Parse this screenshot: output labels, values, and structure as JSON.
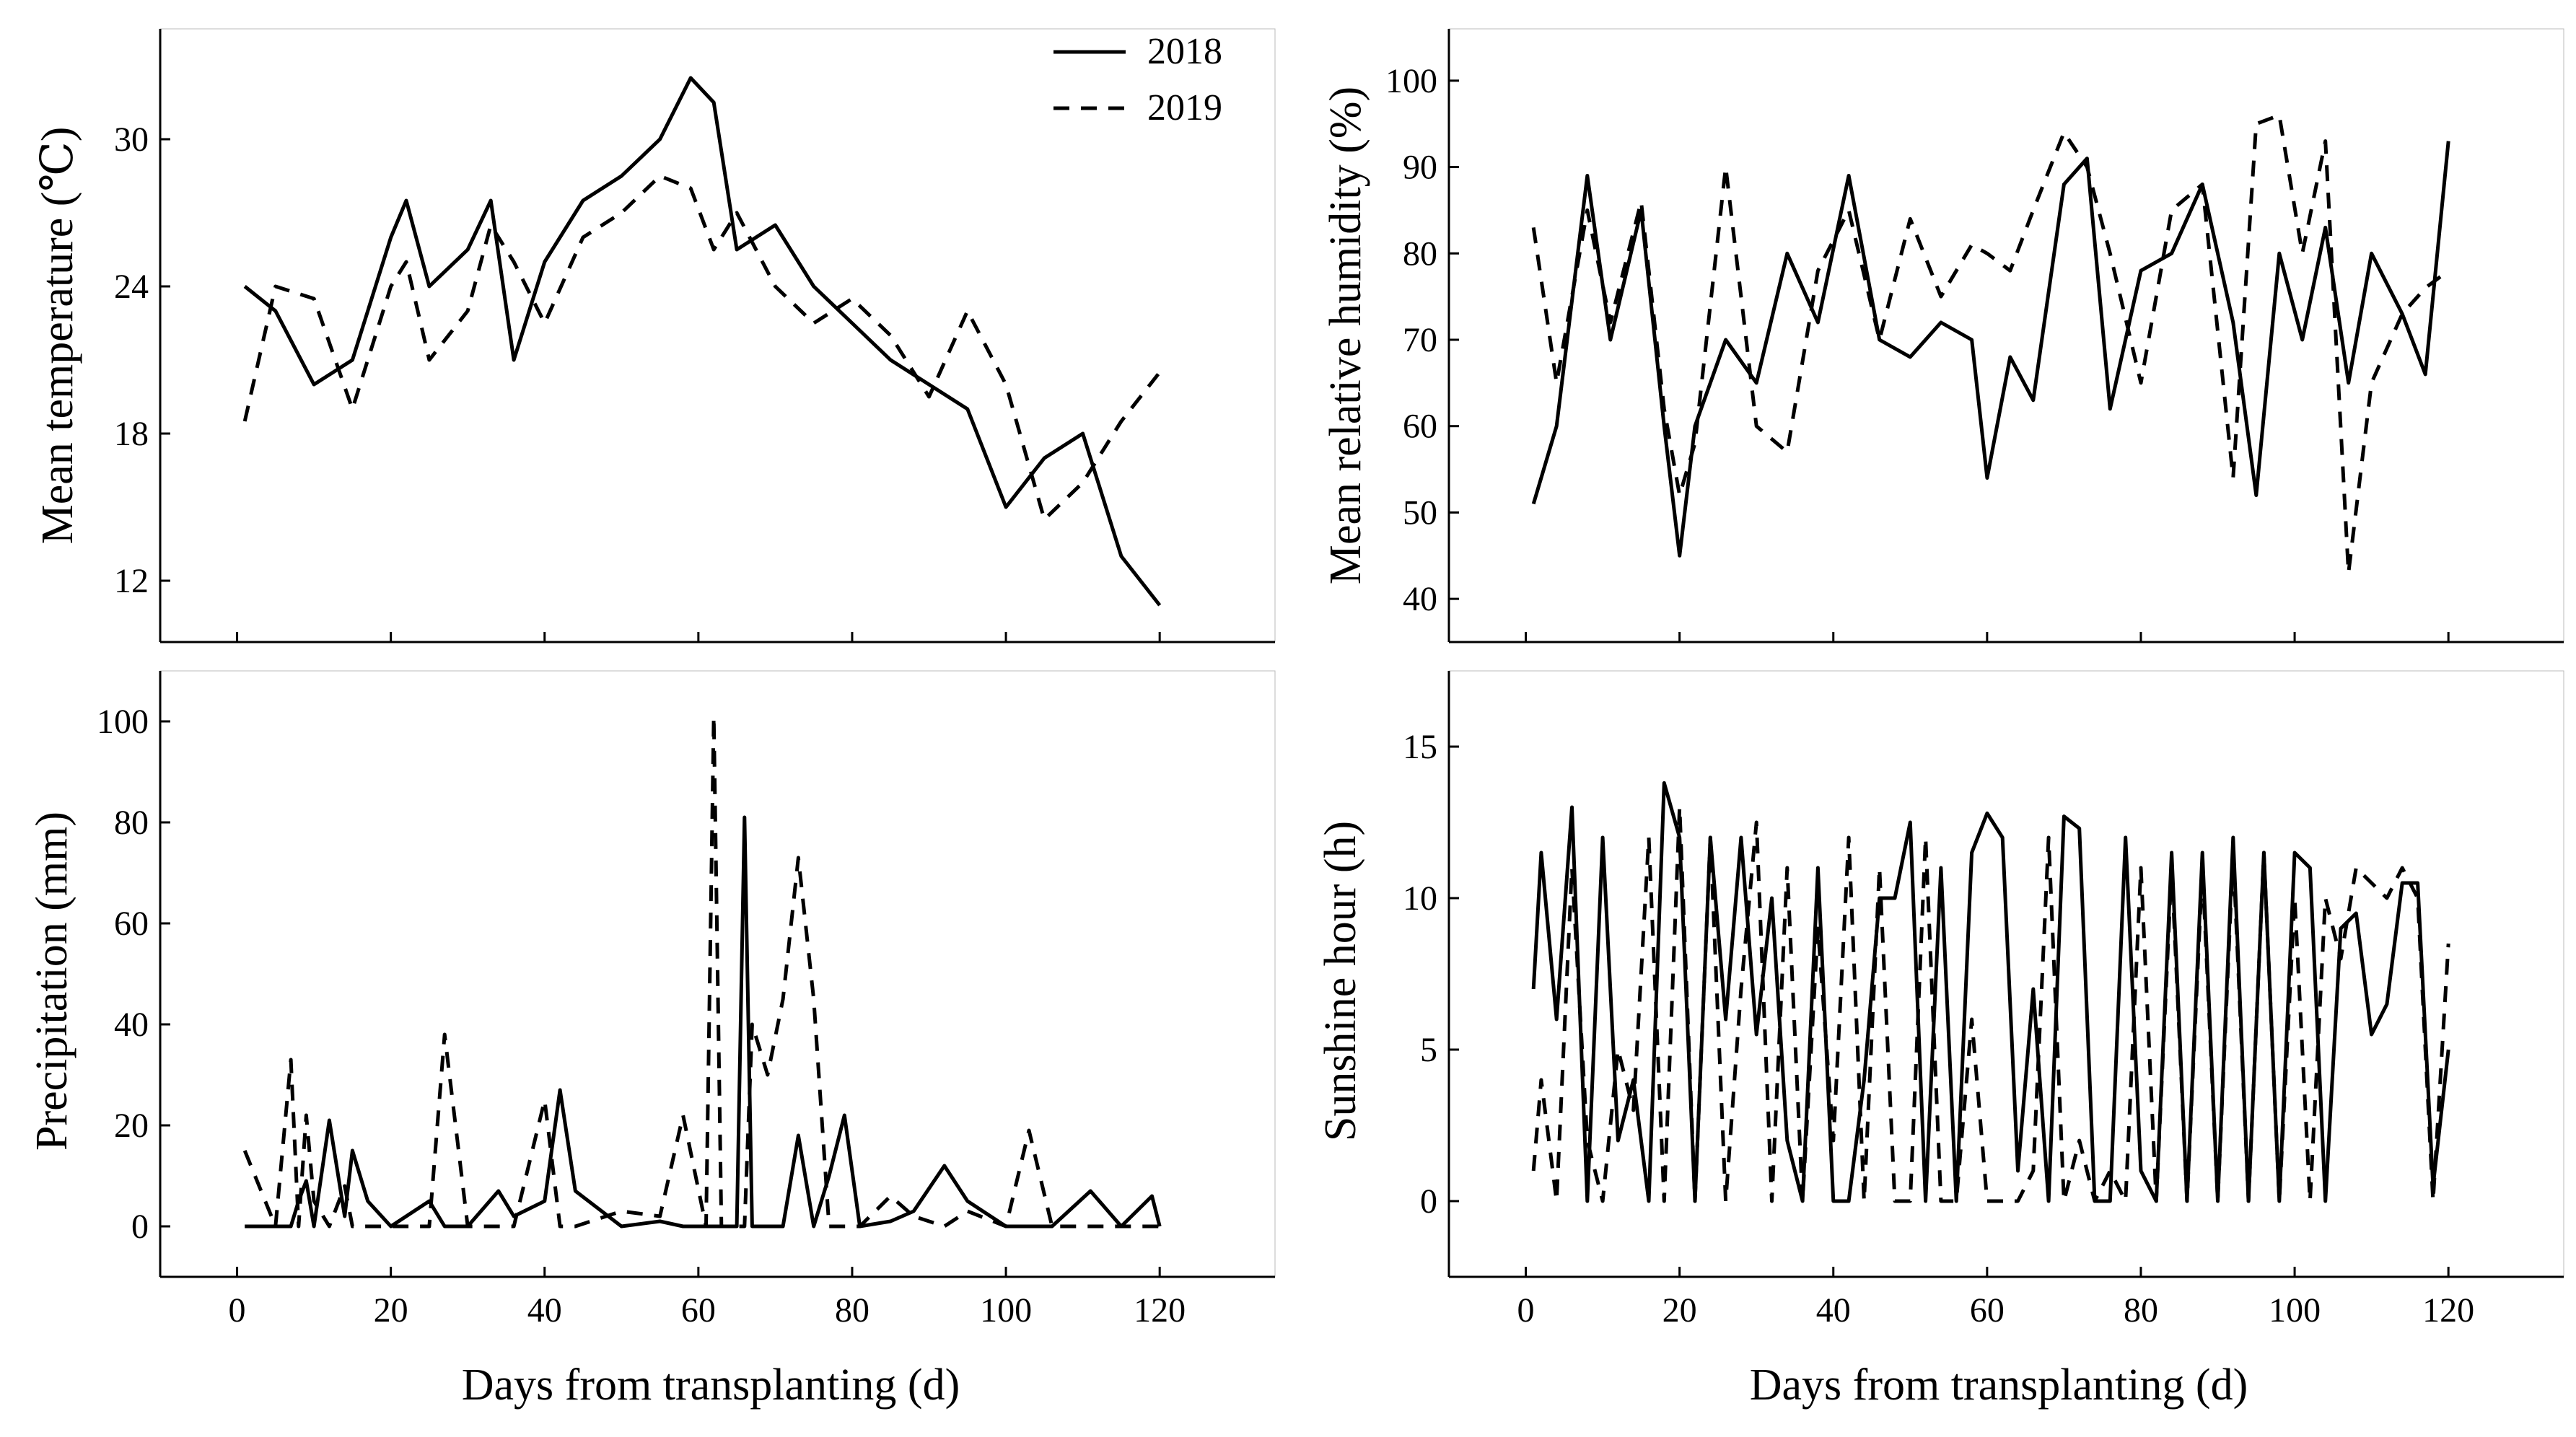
{
  "chart_data": [
    {
      "type": "line",
      "id": "temperature",
      "title": "",
      "xlabel": "",
      "ylabel": "Mean temperature (℃)",
      "xlim": [
        -10,
        135
      ],
      "ylim": [
        9.5,
        34.5
      ],
      "xticks": [
        0,
        20,
        40,
        60,
        80,
        100,
        120
      ],
      "yticks": [
        12,
        18,
        24,
        30
      ],
      "show_xtick_labels": false,
      "grid": false,
      "legend": "top-right",
      "x": [
        1,
        5,
        10,
        15,
        20,
        22,
        25,
        30,
        33,
        36,
        40,
        45,
        50,
        55,
        59,
        62,
        65,
        70,
        75,
        80,
        85,
        90,
        95,
        100,
        105,
        110,
        115,
        120
      ],
      "series": [
        {
          "name": "2018",
          "style": "solid",
          "values": [
            24,
            23,
            20,
            21,
            26,
            27.5,
            24,
            25.5,
            27.5,
            21,
            25,
            27.5,
            28.5,
            30,
            32.5,
            31.5,
            25.5,
            26.5,
            24,
            22.5,
            21,
            20,
            19,
            15,
            17,
            18,
            13,
            11
          ]
        },
        {
          "name": "2019",
          "style": "dash",
          "values": [
            18.5,
            24,
            23.5,
            19,
            24,
            25,
            21,
            23,
            26.5,
            25,
            22.5,
            26,
            27,
            28.5,
            28,
            25.5,
            27,
            24,
            22.5,
            23.5,
            22,
            19.5,
            23,
            20,
            14.5,
            16,
            18.5,
            20.5
          ]
        }
      ]
    },
    {
      "type": "line",
      "id": "humidity",
      "title": "",
      "xlabel": "",
      "ylabel": "Mean relative humidity (%)",
      "xlim": [
        -10,
        135
      ],
      "ylim": [
        35,
        106
      ],
      "xticks": [
        0,
        20,
        40,
        60,
        80,
        100,
        120
      ],
      "yticks": [
        40,
        50,
        60,
        70,
        80,
        90,
        100
      ],
      "show_xtick_labels": false,
      "grid": false,
      "x": [
        1,
        4,
        8,
        11,
        15,
        18,
        20,
        22,
        26,
        30,
        34,
        38,
        42,
        46,
        50,
        54,
        58,
        60,
        63,
        66,
        70,
        73,
        76,
        80,
        84,
        88,
        92,
        95,
        98,
        101,
        104,
        107,
        110,
        114,
        117,
        120
      ],
      "series": [
        {
          "name": "2018",
          "style": "solid",
          "values": [
            51,
            60,
            89,
            70,
            85,
            60,
            45,
            60,
            70,
            65,
            80,
            72,
            89,
            70,
            68,
            72,
            70,
            54,
            68,
            63,
            88,
            91,
            62,
            78,
            80,
            88,
            72,
            52,
            80,
            70,
            83,
            65,
            80,
            73,
            66,
            93
          ]
        },
        {
          "name": "2019",
          "style": "dash",
          "values": [
            83,
            65,
            85,
            72,
            86,
            62,
            52,
            58,
            90,
            60,
            57,
            78,
            85,
            70,
            84,
            75,
            81,
            80,
            78,
            85,
            94,
            90,
            80,
            65,
            85,
            88,
            54,
            95,
            96,
            80,
            93,
            43,
            65,
            73,
            76,
            78
          ]
        }
      ]
    },
    {
      "type": "line",
      "id": "precipitation",
      "title": "",
      "xlabel": "Days from transplanting (d)",
      "ylabel": "Precipitation (mm)",
      "xlim": [
        -10,
        135
      ],
      "ylim": [
        -10,
        110
      ],
      "xticks": [
        0,
        20,
        40,
        60,
        80,
        100,
        120
      ],
      "yticks": [
        0,
        20,
        40,
        60,
        80,
        100
      ],
      "show_xtick_labels": true,
      "grid": false,
      "x": [
        1,
        5,
        7,
        8,
        9,
        10,
        12,
        14,
        15,
        17,
        20,
        25,
        27,
        30,
        34,
        36,
        40,
        42,
        44,
        50,
        55,
        58,
        61,
        62,
        63,
        65,
        66,
        67,
        69,
        71,
        73,
        75,
        77,
        79,
        81,
        85,
        88,
        92,
        95,
        100,
        103,
        106,
        111,
        115,
        119,
        120
      ],
      "series": [
        {
          "name": "2018",
          "style": "solid",
          "values": [
            0,
            0,
            0,
            5,
            9,
            0,
            21,
            2,
            15,
            5,
            0,
            5,
            0,
            0,
            7,
            2,
            5,
            27,
            7,
            0,
            1,
            0,
            0,
            0,
            0,
            0,
            81,
            0,
            0,
            0,
            18,
            0,
            10,
            22,
            0,
            1,
            3,
            12,
            5,
            0,
            0,
            0,
            7,
            0,
            6,
            0
          ]
        },
        {
          "name": "2019",
          "style": "dash",
          "values": [
            15,
            0,
            33,
            0,
            22,
            5,
            0,
            8,
            0,
            0,
            0,
            0,
            38,
            0,
            0,
            0,
            25,
            0,
            0,
            3,
            2,
            22,
            0,
            101,
            0,
            0,
            0,
            40,
            30,
            45,
            73,
            45,
            0,
            0,
            0,
            6,
            2,
            0,
            3,
            0,
            19,
            0,
            0,
            0,
            0,
            0
          ]
        }
      ]
    },
    {
      "type": "line",
      "id": "sunshine",
      "title": "",
      "xlabel": "Days from transplanting (d)",
      "ylabel": "Sunshine hour (h)",
      "xlim": [
        -10,
        135
      ],
      "ylim": [
        -2.5,
        17.5
      ],
      "xticks": [
        0,
        20,
        40,
        60,
        80,
        100,
        120
      ],
      "yticks": [
        0,
        5,
        10,
        15
      ],
      "show_xtick_labels": true,
      "grid": false,
      "x": [
        1,
        2,
        4,
        6,
        8,
        10,
        12,
        14,
        16,
        18,
        20,
        22,
        24,
        26,
        28,
        30,
        32,
        34,
        36,
        38,
        40,
        42,
        44,
        46,
        48,
        50,
        52,
        54,
        56,
        58,
        60,
        62,
        64,
        66,
        68,
        70,
        72,
        74,
        76,
        78,
        80,
        82,
        84,
        86,
        88,
        90,
        92,
        94,
        96,
        98,
        100,
        102,
        104,
        106,
        108,
        110,
        112,
        114,
        116,
        118,
        120
      ],
      "series": [
        {
          "name": "2018",
          "style": "solid",
          "values": [
            7,
            11.5,
            6,
            13,
            0,
            12,
            2,
            4,
            0,
            13.8,
            12,
            0,
            12,
            6,
            12,
            5.5,
            10,
            2,
            0,
            11,
            0,
            0,
            4,
            10,
            10,
            12.5,
            0,
            11,
            0,
            11.5,
            12.8,
            12,
            1,
            7,
            0,
            12.7,
            12.3,
            0,
            0,
            12,
            1,
            0,
            11.5,
            0,
            11.5,
            0,
            12,
            0,
            11.5,
            0,
            11.5,
            11,
            0,
            9,
            9.5,
            5.5,
            6.5,
            10.5,
            10.5,
            0.5,
            5
          ]
        },
        {
          "name": "2019",
          "style": "dash",
          "values": [
            1,
            4,
            0,
            11,
            2,
            0,
            5,
            3,
            12,
            0,
            13,
            0,
            12,
            0,
            7,
            12.5,
            0,
            11,
            0,
            9,
            2,
            12,
            0,
            11,
            0,
            0,
            12,
            0,
            0,
            6,
            0,
            0,
            0,
            1,
            12,
            0,
            2,
            0,
            1,
            0,
            11,
            0,
            11,
            0,
            11,
            0,
            11.5,
            0,
            11.5,
            0,
            10,
            0,
            10,
            8,
            11,
            10.5,
            10,
            11,
            10,
            0,
            8.5
          ]
        }
      ]
    }
  ]
}
